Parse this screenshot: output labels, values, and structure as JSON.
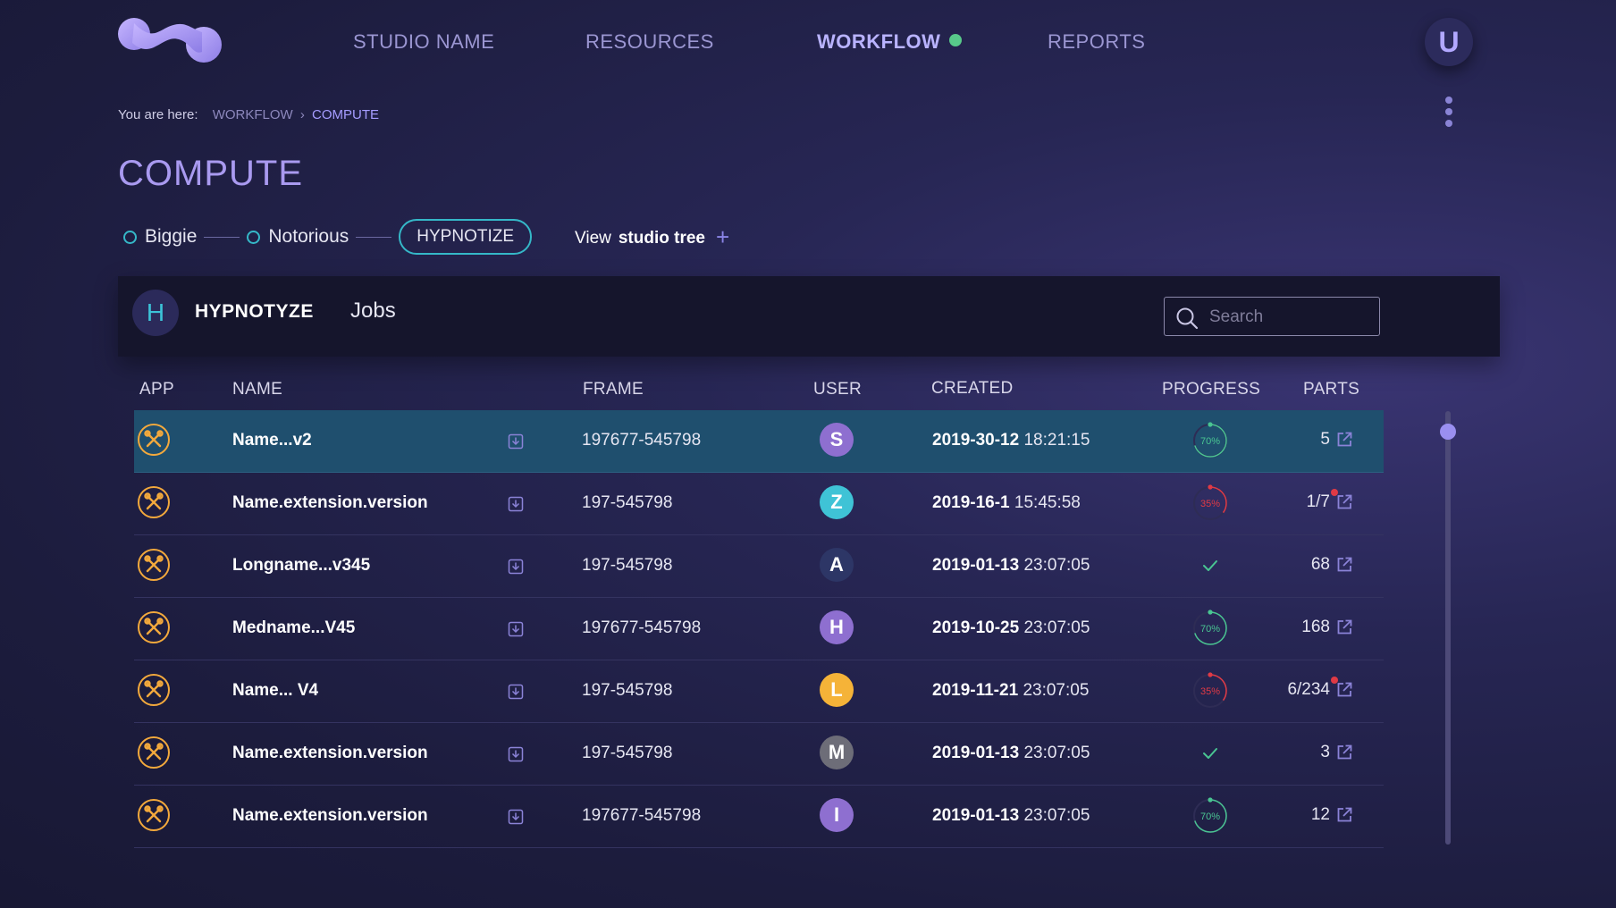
{
  "nav": {
    "items": [
      "STUDIO NAME",
      "RESOURCES",
      "WORKFLOW",
      "REPORTS"
    ],
    "active_index": 2,
    "active_status_color": "#58c98a"
  },
  "user": {
    "initial": "U"
  },
  "breadcrumb": {
    "prefix": "You are here:",
    "parent": "WORKFLOW",
    "current": "COMPUTE"
  },
  "page": {
    "title": "COMPUTE"
  },
  "pipeline": {
    "nodes": [
      "Biggie",
      "Notorious"
    ],
    "active": "HYPNOTIZE",
    "view_label": "View",
    "view_strong": "studio tree",
    "add_icon": "plus-icon"
  },
  "panel": {
    "avatar": "H",
    "title": "HYPNOTYZE",
    "tab": "Jobs",
    "search_placeholder": "Search"
  },
  "table": {
    "headers": [
      "APP",
      "NAME",
      "FRAME",
      "USER",
      "CREATED",
      "PROGRESS",
      "PARTS"
    ],
    "rows": [
      {
        "name": "Name...v2",
        "frame": "197677-545798",
        "user": "S",
        "user_color": "#8e6fd0",
        "date": "2019-30-12",
        "time": "18:21:15",
        "progress": 70,
        "status": "running",
        "parts": "5",
        "parts_error": false,
        "selected": true
      },
      {
        "name": "Name.extension.version",
        "frame": "197-545798",
        "user": "Z",
        "user_color": "#3fc3d6",
        "date": "2019-16-1",
        "time": "15:45:58",
        "progress": 35,
        "status": "error",
        "parts": "1/7",
        "parts_error": true,
        "selected": false
      },
      {
        "name": "Longname...v345",
        "frame": "197-545798",
        "user": "A",
        "user_color": "#2d3666",
        "date": "2019-01-13",
        "time": "23:07:05",
        "progress": 100,
        "status": "done",
        "parts": "68",
        "parts_error": false,
        "selected": false
      },
      {
        "name": "Medname...V45",
        "frame": "197677-545798",
        "user": "H",
        "user_color": "#8e6fd0",
        "date": "2019-10-25",
        "time": "23:07:05",
        "progress": 70,
        "status": "running",
        "parts": "168",
        "parts_error": false,
        "selected": false
      },
      {
        "name": "Name... V4",
        "frame": "197-545798",
        "user": "L",
        "user_color": "#f5b338",
        "date": "2019-11-21",
        "time": "23:07:05",
        "progress": 35,
        "status": "error",
        "parts": "6/234",
        "parts_error": true,
        "selected": false
      },
      {
        "name": "Name.extension.version",
        "frame": "197-545798",
        "user": "M",
        "user_color": "#6d6d78",
        "date": "2019-01-13",
        "time": "23:07:05",
        "progress": 100,
        "status": "done",
        "parts": "3",
        "parts_error": false,
        "selected": false
      },
      {
        "name": "Name.extension.version",
        "frame": "197677-545798",
        "user": "I",
        "user_color": "#8e6fd0",
        "date": "2019-01-13",
        "time": "23:07:05",
        "progress": 70,
        "status": "running",
        "parts": "12",
        "parts_error": false,
        "selected": false
      }
    ]
  },
  "colors": {
    "accent": "#a59cff",
    "teal": "#35b8c8",
    "app_icon": "#f3a93c",
    "progress_ok": "#49c592",
    "progress_error": "#e03a45"
  }
}
